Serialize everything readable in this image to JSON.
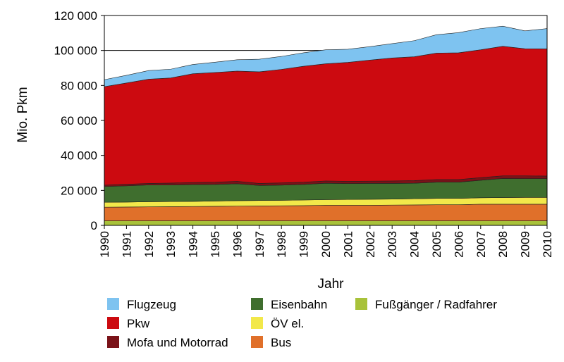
{
  "chart_data": {
    "type": "area",
    "stacked": true,
    "title": "",
    "xlabel": "Jahr",
    "ylabel": "Mio. Pkm",
    "ylim": [
      0,
      120000
    ],
    "yticks": [
      0,
      20000,
      40000,
      60000,
      80000,
      100000,
      120000
    ],
    "ytick_labels": [
      "0",
      "20 000",
      "40 000",
      "60 000",
      "80 000",
      "100 000",
      "120 000"
    ],
    "grid": "horizontal",
    "x": [
      "1990",
      "1991",
      "1992",
      "1993",
      "1994",
      "1995",
      "1996",
      "1997",
      "1998",
      "1999",
      "2000",
      "2001",
      "2002",
      "2003",
      "2004",
      "2005",
      "2006",
      "2007",
      "2008",
      "2009",
      "2010"
    ],
    "series": [
      {
        "name": "Fußgänger / Radfahrer",
        "color": "#a8c23a",
        "values": [
          2600,
          2600,
          2600,
          2600,
          2600,
          2600,
          2600,
          2600,
          2600,
          2600,
          2600,
          2600,
          2600,
          2600,
          2600,
          2600,
          2600,
          2600,
          2600,
          2600,
          2600
        ]
      },
      {
        "name": "Bus",
        "color": "#e0702a",
        "values": [
          7800,
          7900,
          8000,
          8100,
          8200,
          8300,
          8400,
          8500,
          8600,
          8700,
          8900,
          8900,
          8900,
          9000,
          9100,
          9200,
          9200,
          9500,
          9500,
          9500,
          9500
        ]
      },
      {
        "name": "ÖV el.",
        "color": "#f2e84a",
        "values": [
          2800,
          2800,
          2900,
          2900,
          2900,
          3000,
          3100,
          3100,
          3100,
          3200,
          3200,
          3300,
          3400,
          3400,
          3500,
          3600,
          3600,
          3700,
          3800,
          3900,
          3900
        ]
      },
      {
        "name": "Eisenbahn",
        "color": "#3f6e2e",
        "values": [
          9000,
          9300,
          9600,
          9500,
          9600,
          9500,
          9700,
          8600,
          8700,
          8900,
          9400,
          9100,
          9100,
          9000,
          8900,
          9300,
          9300,
          10000,
          10900,
          10700,
          10700
        ]
      },
      {
        "name": "Mofa und Motorrad",
        "color": "#7a1218",
        "values": [
          800,
          900,
          900,
          1100,
          1200,
          1300,
          1400,
          1200,
          1300,
          1300,
          1300,
          1300,
          1300,
          1400,
          1500,
          1500,
          1500,
          1500,
          1500,
          1600,
          1500
        ]
      },
      {
        "name": "Pkw",
        "color": "#cc0a10",
        "values": [
          56300,
          57900,
          59600,
          60100,
          62200,
          62700,
          63000,
          63800,
          64900,
          66300,
          67000,
          68000,
          69200,
          70300,
          70800,
          72300,
          72500,
          73100,
          74100,
          72700,
          72700
        ]
      },
      {
        "name": "Flugzeug",
        "color": "#7ec3f0",
        "values": [
          4000,
          4400,
          4900,
          5000,
          5300,
          5900,
          6500,
          7200,
          7400,
          7700,
          8000,
          7500,
          7700,
          8200,
          9200,
          10500,
          11500,
          12100,
          11500,
          10200,
          11600
        ]
      }
    ],
    "legend": {
      "position": "bottom",
      "columns": [
        [
          "Flugzeug",
          "Pkw",
          "Mofa und Motorrad"
        ],
        [
          "Eisenbahn",
          "ÖV el.",
          "Bus"
        ],
        [
          "Fußgänger / Radfahrer"
        ]
      ]
    }
  }
}
